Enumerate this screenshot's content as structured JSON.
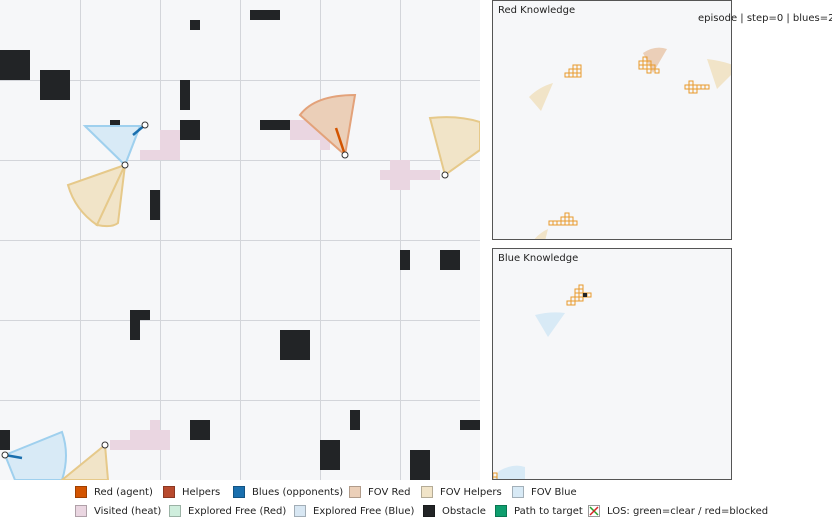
{
  "episode_info": "episode | step=0 | blues=2",
  "panels": {
    "red_knowledge_title": "Red Knowledge",
    "blue_knowledge_title": "Blue Knowledge"
  },
  "legend": {
    "items": [
      {
        "label": "Red (agent)",
        "color": "#d35400"
      },
      {
        "label": "Helpers",
        "color": "#b84a2e"
      },
      {
        "label": "Blues (opponents)",
        "color": "#1a6fae"
      },
      {
        "label": "FOV Red",
        "color": "#ebcfb8"
      },
      {
        "label": "FOV Helpers",
        "color": "#f1e4c8"
      },
      {
        "label": "FOV Blue",
        "color": "#d8eaf6"
      },
      {
        "label": "Visited (heat)",
        "color": "#ead6e1"
      },
      {
        "label": "Explored Free (Red)",
        "color": "#cfeedd"
      },
      {
        "label": "Explored Free (Blue)",
        "color": "#d8e7f3"
      },
      {
        "label": "Obstacle",
        "color": "#222426"
      },
      {
        "label": "Path to target",
        "color": "#0e9e6e"
      },
      {
        "label": "LOS: green=clear / red=blocked",
        "icon": "los-cross-icon"
      }
    ]
  }
}
